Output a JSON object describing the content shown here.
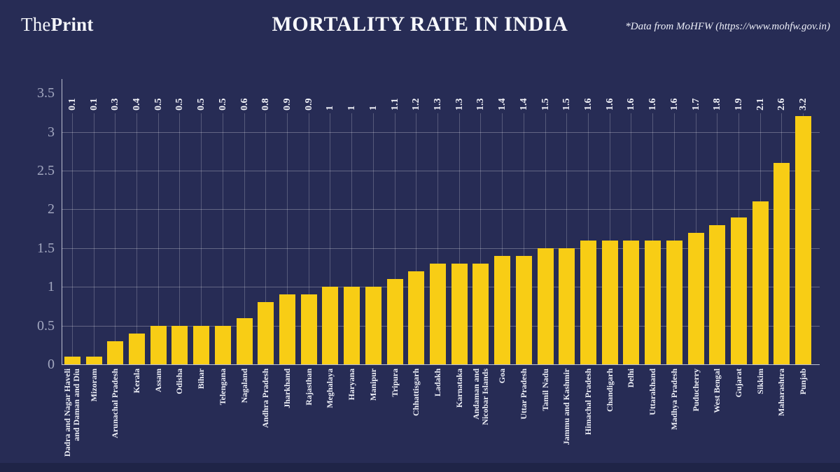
{
  "page": {
    "background_color": "#272c55",
    "footer_strip_color": "#1f2447"
  },
  "header": {
    "logo": {
      "the": "The",
      "print": "Print"
    },
    "title": "MORTALITY RATE IN INDIA",
    "attribution": "*Data from MoHFW (https://www.mohfw.gov.in)"
  },
  "chart_data": {
    "type": "bar",
    "title": "MORTALITY RATE IN INDIA",
    "xlabel": "",
    "ylabel": "",
    "ylim": [
      0,
      3.5
    ],
    "yticks": [
      "0",
      "0.5",
      "1",
      "1.5",
      "2",
      "2.5",
      "3",
      "3.5"
    ],
    "gridline_values": [
      0.5,
      1,
      1.5,
      2,
      2.5,
      3
    ],
    "grid": true,
    "legend": false,
    "bar_color": "#f8cd15",
    "categories": [
      "Dadra and Nagar Haveli\nand Daman and Diu",
      "Mizoram",
      "Arunachal Pradesh",
      "Kerala",
      "Assam",
      "Odisha",
      "Bihar",
      "Telengana",
      "Nagaland",
      "Andhra Pradesh",
      "Jharkhand",
      "Rajasthan",
      "Meghalaya",
      "Haryana",
      "Manipur",
      "Tripura",
      "Chhattisgarh",
      "Ladakh",
      "Karnataka",
      "Andaman and\nNicobar Islands",
      "Goa",
      "Uttar Pradesh",
      "Tamil Nadu",
      "Jammu and Kashmir",
      "Himachal Pradesh",
      "Chandigarh",
      "Delhi",
      "Uttarakhand",
      "Madhya Pradesh",
      "Puducherry",
      "West Bengal",
      "Gujarat",
      "Sikkim",
      "Maharashtra",
      "Punjab"
    ],
    "values": [
      0.1,
      0.1,
      0.3,
      0.4,
      0.5,
      0.5,
      0.5,
      0.5,
      0.6,
      0.8,
      0.9,
      0.9,
      1,
      1,
      1,
      1.1,
      1.2,
      1.3,
      1.3,
      1.3,
      1.4,
      1.4,
      1.5,
      1.5,
      1.6,
      1.6,
      1.6,
      1.6,
      1.6,
      1.7,
      1.8,
      1.9,
      2.1,
      2.6,
      3.2
    ],
    "value_labels": [
      "0.1",
      "0.1",
      "0.3",
      "0.4",
      "0.5",
      "0.5",
      "0.5",
      "0.5",
      "0.6",
      "0.8",
      "0.9",
      "0.9",
      "1",
      "1",
      "1",
      "1.1",
      "1.2",
      "1.3",
      "1.3",
      "1.3",
      "1.4",
      "1.4",
      "1.5",
      "1.5",
      "1.6",
      "1.6",
      "1.6",
      "1.6",
      "1.6",
      "1.7",
      "1.8",
      "1.9",
      "2.1",
      "2.6",
      "3.2"
    ]
  }
}
